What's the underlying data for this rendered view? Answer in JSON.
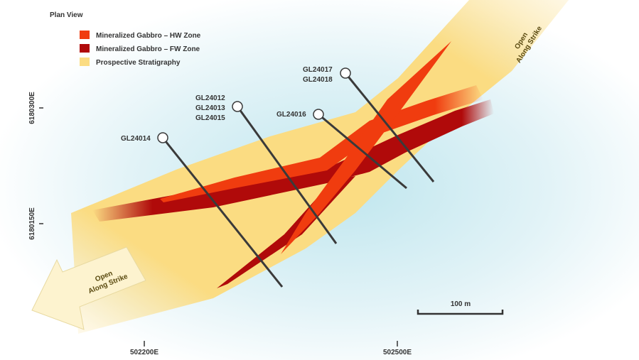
{
  "title": "Plan View",
  "legend": [
    "Mineralized Gabbro – HW Zone",
    "Mineralized Gabbro – FW Zone",
    "Prospective Stratigraphy"
  ],
  "drill_holes": [
    {
      "labels": [
        "GL24014"
      ]
    },
    {
      "labels": [
        "GL24012",
        "GL24013",
        "GL24015"
      ]
    },
    {
      "labels": [
        "GL24016"
      ]
    },
    {
      "labels": [
        "GL24017",
        "GL24018"
      ]
    }
  ],
  "annotations": [
    {
      "lines": [
        "Open",
        "Along Strike"
      ]
    },
    {
      "lines": [
        "Open",
        "Along Strike"
      ]
    }
  ],
  "northings": [
    "6180300E",
    "6180150E"
  ],
  "eastings": [
    "502200E",
    "502500E"
  ],
  "scale_bar": "100 m"
}
